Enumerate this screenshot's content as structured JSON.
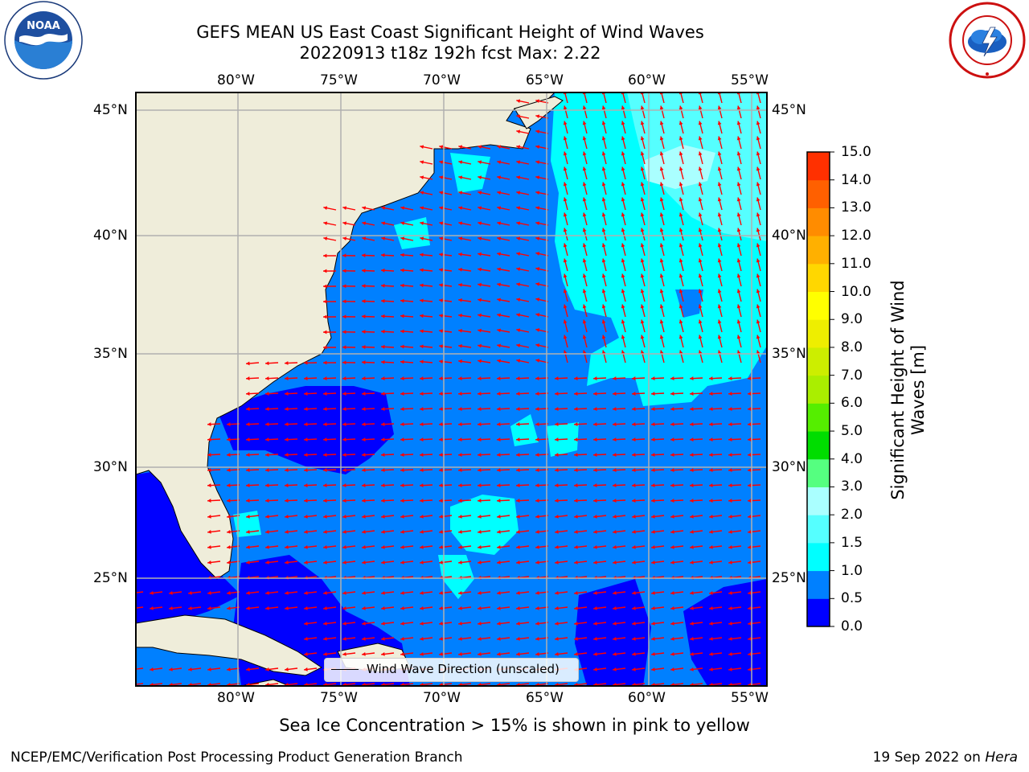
{
  "title_line1": "GEFS MEAN US East Coast Significant Height of Wind Waves",
  "title_line2": "20220913 t18z 192h fcst   Max: 2.22",
  "logos": {
    "left": "noaa-logo",
    "left_text": "NOAA",
    "right": "nws-logo",
    "right_text": "NATIONAL WEATHER SERVICE"
  },
  "map": {
    "lon_labels": [
      "80°W",
      "75°W",
      "70°W",
      "65°W",
      "60°W",
      "55°W"
    ],
    "lat_labels": [
      "45°N",
      "40°N",
      "35°N",
      "30°N",
      "25°N"
    ],
    "land_color": "#efedda",
    "arrow_color": "#ff0000",
    "grid_color": "#b0b0b0"
  },
  "legend": {
    "label": "Wind Wave Direction (unscaled)"
  },
  "colorbar": {
    "title": "Significant Height of Wind Waves [m]",
    "title_line1": "Significant Height of Wind",
    "title_line2": "Waves [m]",
    "tick_labels": [
      "0.0",
      "0.5",
      "1.0",
      "1.5",
      "2.0",
      "3.0",
      "4.0",
      "5.0",
      "6.0",
      "7.0",
      "8.0",
      "9.0",
      "10.0",
      "11.0",
      "12.0",
      "13.0",
      "14.0",
      "15.0"
    ],
    "colors": [
      "#0000ff",
      "#0080ff",
      "#00ffff",
      "#55ffff",
      "#aaffff",
      "#55ff80",
      "#00dd00",
      "#55ee00",
      "#aaee00",
      "#ccee00",
      "#eeee00",
      "#ffff00",
      "#ffd700",
      "#ffb000",
      "#ff8c00",
      "#ff6000",
      "#ff3000",
      "#ff0000"
    ]
  },
  "caption": "Sea Ice Concentration > 15% is shown in pink to yellow",
  "footer": {
    "left": "NCEP/EMC/Verification Post Processing Product Generation Branch",
    "right_date": "19 Sep 2022 on ",
    "right_host": "Hera"
  }
}
